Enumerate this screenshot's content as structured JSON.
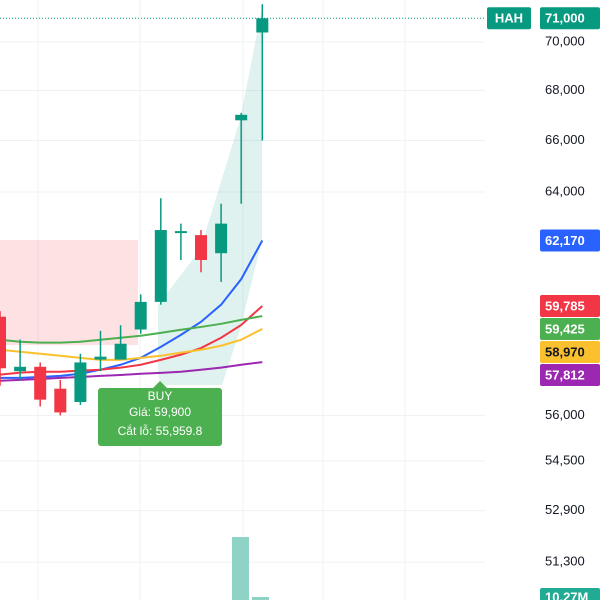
{
  "chart_data": {
    "type": "candlestick",
    "scale": "log",
    "grid": true,
    "symbol": "HAH",
    "categories": [
      null,
      null,
      null,
      null,
      null,
      null,
      null,
      null,
      null,
      null,
      null,
      null,
      null,
      null
    ],
    "open": [
      59400,
      57500,
      57650,
      56900,
      56450,
      57900,
      57900,
      58950,
      59930,
      62450,
      62370,
      61700,
      66800,
      70400
    ],
    "high": [
      59600,
      58600,
      57800,
      57200,
      58100,
      58900,
      59100,
      60200,
      63760,
      62800,
      62560,
      63550,
      67100,
      71600
    ],
    "low": [
      57000,
      57200,
      56300,
      56000,
      56350,
      57500,
      57900,
      58800,
      59830,
      61450,
      61000,
      60650,
      63550,
      66000
    ],
    "close": [
      57600,
      57650,
      56530,
      56100,
      57800,
      58000,
      58450,
      59930,
      62560,
      62520,
      61450,
      62800,
      67020,
      71000
    ],
    "up_color": "#089981",
    "down_color": "#f23645",
    "last_label": "71,000",
    "series": [
      {
        "color": "#2962ff",
        "last_label": "62,170",
        "values": [
          57270,
          57270,
          57300,
          57340,
          57410,
          57550,
          57720,
          57960,
          58340,
          58760,
          59220,
          59830,
          60750,
          62170
        ]
      },
      {
        "color": "#f23645",
        "last_label": "59,785",
        "values": [
          57380,
          57450,
          57480,
          57480,
          57520,
          57550,
          57620,
          57720,
          57890,
          58070,
          58300,
          58660,
          59110,
          59785
        ]
      },
      {
        "color": "#4caf50",
        "last_label": "59,425",
        "values": [
          58590,
          58520,
          58490,
          58490,
          58520,
          58590,
          58660,
          58730,
          58830,
          58940,
          59040,
          59150,
          59290,
          59425
        ]
      },
      {
        "color": "#fbc02d",
        "last_label": "58,970",
        "values": [
          58240,
          58170,
          58100,
          58030,
          57960,
          57890,
          57890,
          57960,
          58030,
          58140,
          58240,
          58380,
          58590,
          58970
        ]
      },
      {
        "color": "#9c27b0",
        "last_label": "57,812",
        "values": [
          57170,
          57200,
          57230,
          57270,
          57300,
          57340,
          57370,
          57410,
          57440,
          57480,
          57550,
          57620,
          57720,
          57812
        ]
      }
    ],
    "ylim": [
      50150,
      71780
    ],
    "yticks": [
      {
        "value": 70000,
        "label": "70,000"
      },
      {
        "value": 68000,
        "label": "68,000"
      },
      {
        "value": 66000,
        "label": "66,000"
      },
      {
        "value": 64000,
        "label": "64,000"
      },
      {
        "value": 56000,
        "label": "56,000"
      },
      {
        "value": 54500,
        "label": "54,500"
      },
      {
        "value": 52900,
        "label": "52,900"
      },
      {
        "value": 51300,
        "label": "51,300"
      }
    ],
    "volume_label": "10.27M",
    "annotation": {
      "title": "BUY",
      "price": "Giá: 59,900",
      "stop": "Cắt lỗ: 55,959.8"
    }
  }
}
